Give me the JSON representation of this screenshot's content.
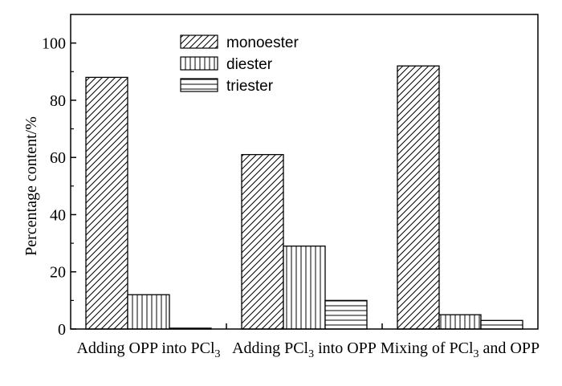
{
  "chart_data": {
    "type": "bar",
    "categories": [
      {
        "main": "Adding OPP into PCl",
        "sub": "3",
        "tail": ""
      },
      {
        "main": "Adding PCl",
        "sub": "3",
        "tail": " into OPP"
      },
      {
        "main": "Mixing of PCl",
        "sub": "3",
        "tail": " and OPP"
      }
    ],
    "series": [
      {
        "name": "monoester",
        "pattern": "diagonal",
        "values": [
          88,
          61,
          92
        ]
      },
      {
        "name": "diester",
        "pattern": "vertical",
        "values": [
          12,
          29,
          5
        ]
      },
      {
        "name": "triester",
        "pattern": "horizontal",
        "values": [
          0.3,
          10,
          3
        ]
      }
    ],
    "ylabel": "Percentage content/%",
    "ylim": [
      0,
      110
    ],
    "yticks": [
      0,
      20,
      40,
      60,
      80,
      100
    ],
    "grid": false,
    "legend_position": "top-center"
  }
}
